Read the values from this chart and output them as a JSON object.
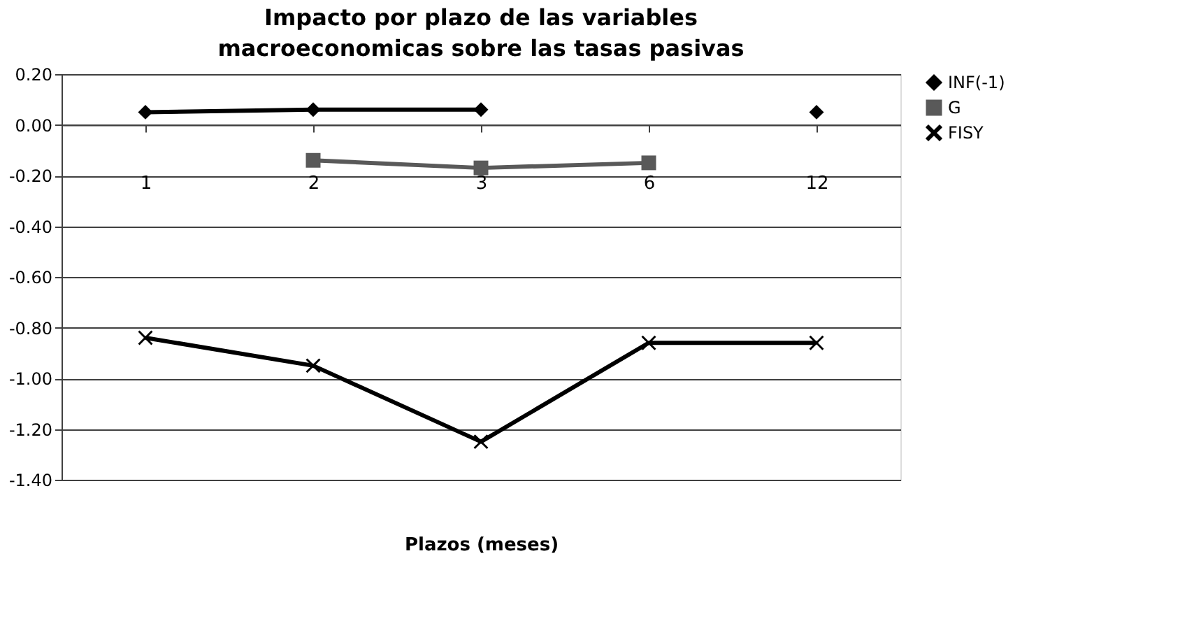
{
  "chart_data": {
    "type": "line",
    "title": "Impacto por plazo de las variables macroeconomicas sobre las tasas pasivas",
    "xlabel": "Plazos (meses)",
    "categories": [
      "1",
      "2",
      "3",
      "6",
      "12"
    ],
    "series": [
      {
        "name": "INF(-1)",
        "color": "#000000",
        "marker": "diamond",
        "values": [
          0.05,
          0.06,
          0.06,
          null,
          0.05
        ]
      },
      {
        "name": "G",
        "color": "#595959",
        "marker": "square",
        "values": [
          null,
          -0.14,
          -0.17,
          -0.15,
          null
        ]
      },
      {
        "name": "FISY",
        "color": "#000000",
        "marker": "cross",
        "values": [
          -0.84,
          -0.95,
          -1.25,
          -0.86,
          -0.86
        ]
      }
    ],
    "ylim": [
      -1.4,
      0.2
    ],
    "yticks": [
      {
        "value": 0.2,
        "label": "0.20"
      },
      {
        "value": 0,
        "label": "0.00"
      },
      {
        "value": -0.2,
        "label": "-0.20"
      },
      {
        "value": -0.4,
        "label": "-0.40"
      },
      {
        "value": -0.6,
        "label": "-0.60"
      },
      {
        "value": -0.8,
        "label": "-0.80"
      },
      {
        "value": -1.0,
        "label": "-1.00"
      },
      {
        "value": -1.2,
        "label": "-1.20"
      },
      {
        "value": -1.4,
        "label": "-1.40"
      }
    ],
    "grid": "y",
    "legend": "right",
    "line_style": "solid"
  }
}
